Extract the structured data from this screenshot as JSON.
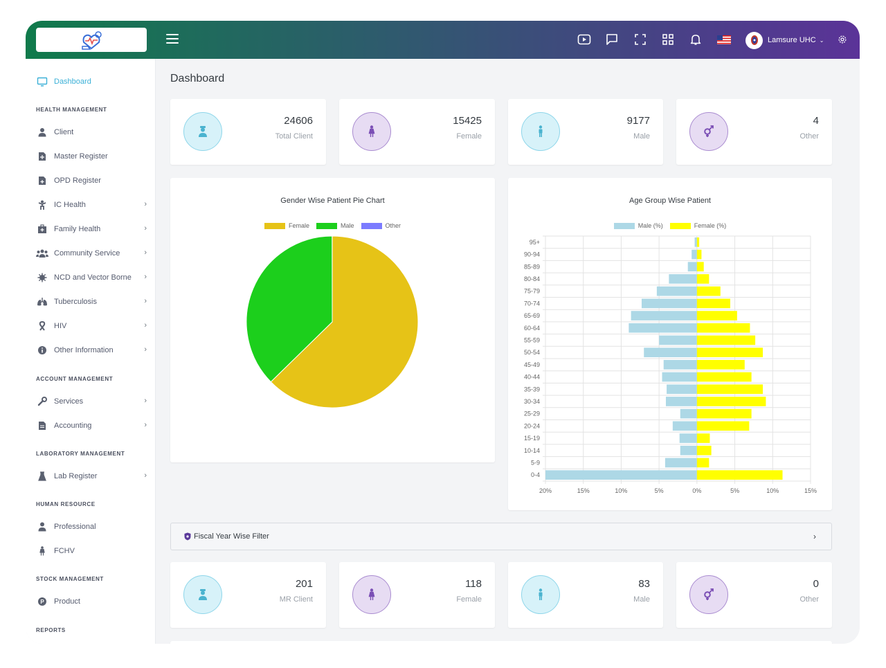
{
  "topbar": {
    "user_name": "Lamsure UHC",
    "icons": [
      "video-icon",
      "chat-icon",
      "fullscreen-icon",
      "apps-grid-icon",
      "bell-icon",
      "us-flag-icon",
      "settings-gear-icon"
    ]
  },
  "sidebar": {
    "dashboard": "Dashboard",
    "sections": {
      "health": "HEALTH MANAGEMENT",
      "account": "ACCOUNT MANAGEMENT",
      "lab": "LABORATORY MANAGEMENT",
      "hr": "HUMAN RESOURCE",
      "stock": "STOCK MANAGEMENT",
      "reports": "REPORTS"
    },
    "items": {
      "client": "Client",
      "master_register": "Master Register",
      "opd_register": "OPD Register",
      "ic_health": "IC Health",
      "family_health": "Family Health",
      "community_service": "Community Service",
      "ncd": "NCD and Vector Borne",
      "tuberculosis": "Tuberculosis",
      "hiv": "HIV",
      "other_info": "Other Information",
      "services": "Services",
      "accounting": "Accounting",
      "lab_register": "Lab Register",
      "professional": "Professional",
      "fchv": "FCHV",
      "product": "Product"
    }
  },
  "page_title": "Dashboard",
  "stats_top": [
    {
      "value": "24606",
      "label": "Total Client"
    },
    {
      "value": "15425",
      "label": "Female"
    },
    {
      "value": "9177",
      "label": "Male"
    },
    {
      "value": "4",
      "label": "Other"
    }
  ],
  "stats_bottom": [
    {
      "value": "201",
      "label": "MR Client"
    },
    {
      "value": "118",
      "label": "Female"
    },
    {
      "value": "83",
      "label": "Male"
    },
    {
      "value": "0",
      "label": "Other"
    }
  ],
  "filter": {
    "label": "Fiscal Year Wise Filter"
  },
  "chart_data": [
    {
      "type": "pie",
      "title": "Gender Wise Patient Pie Chart",
      "categories": [
        "Female",
        "Male",
        "Other"
      ],
      "values": [
        15425,
        9177,
        4
      ],
      "colors": [
        "#e6c317",
        "#1ccf1c",
        "#7b7bff"
      ],
      "legend": "top"
    },
    {
      "type": "bar",
      "orientation": "horizontal",
      "title": "Age Group Wise Patient",
      "categories": [
        "95+",
        "90-94",
        "85-89",
        "80-84",
        "75-79",
        "70-74",
        "65-69",
        "60-64",
        "55-59",
        "50-54",
        "45-49",
        "40-44",
        "35-39",
        "30-34",
        "25-29",
        "20-24",
        "15-19",
        "10-14",
        "5-9",
        "0-4"
      ],
      "series": [
        {
          "name": "Male (%)",
          "color": "#add8e6",
          "values": [
            -0.3,
            -0.7,
            -1.2,
            -3.7,
            -5.3,
            -7.3,
            -8.7,
            -9.0,
            -5.0,
            -7.0,
            -4.4,
            -4.6,
            -4.0,
            -4.1,
            -2.2,
            -3.2,
            -2.3,
            -2.2,
            -4.2,
            -20.0
          ]
        },
        {
          "name": "Female (%)",
          "color": "#ffff00",
          "values": [
            0.3,
            0.6,
            0.9,
            1.6,
            3.1,
            4.4,
            5.3,
            7.0,
            7.7,
            8.7,
            6.3,
            7.2,
            8.7,
            9.1,
            7.2,
            6.9,
            1.7,
            1.9,
            1.6,
            11.3
          ]
        }
      ],
      "xlim": [
        -20,
        15
      ],
      "x_ticks": [
        "20%",
        "15%",
        "10%",
        "5%",
        "0%",
        "5%",
        "10%",
        "15%"
      ],
      "grid": true,
      "legend": "top"
    }
  ]
}
